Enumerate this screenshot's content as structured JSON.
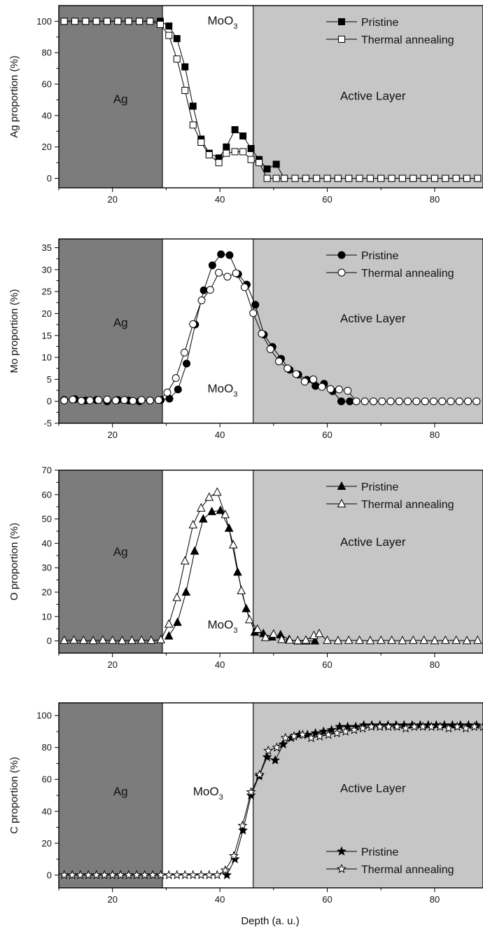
{
  "figure": {
    "xlabel": "Depth (a. u.)"
  },
  "chart_data": [
    {
      "id": "ag",
      "type": "line",
      "marker": "square",
      "ylabel": "Ag proportion (%)",
      "xlim": [
        10,
        89
      ],
      "ylim": [
        -6,
        110
      ],
      "xticks": [
        20,
        40,
        60,
        80
      ],
      "yticks": [
        0,
        20,
        40,
        60,
        80,
        100
      ],
      "regions": [
        {
          "label": "Ag",
          "x0": 10,
          "x1": 29.3,
          "fill": "#7c7c7c",
          "label_x": 21.5,
          "label_y": 48
        },
        {
          "label": "MoO",
          "sub": "3",
          "x0": 29.3,
          "x1": 46.2,
          "fill": "#ffffff",
          "label_x": 40.5,
          "label_y": 98
        },
        {
          "label": "Active Layer",
          "x0": 46.2,
          "x1": 89,
          "fill": "#c6c6c6",
          "label_x": 68.5,
          "label_y": 50
        }
      ],
      "legend_position": "top-right",
      "series": [
        {
          "name": "Pristine",
          "filled": true,
          "x": [
            11,
            13,
            15,
            17,
            19,
            21,
            23,
            25,
            27,
            28.9,
            30.5,
            32,
            33.5,
            35,
            36.5,
            38,
            39.8,
            41.2,
            42.8,
            44.3,
            45.8,
            47.3,
            48.8,
            50.5,
            52,
            54,
            56,
            58,
            60,
            62,
            64,
            66,
            68,
            70,
            72,
            74,
            76,
            78,
            80,
            82,
            84,
            86,
            88
          ],
          "y": [
            100,
            100,
            100,
            100,
            100,
            100,
            100,
            100,
            100,
            100,
            97,
            89,
            71,
            46,
            25,
            16,
            13,
            20,
            31,
            27,
            19,
            12,
            6,
            9,
            0,
            0,
            0,
            0,
            0,
            0,
            0,
            0,
            0,
            0,
            0,
            0,
            0,
            0,
            0,
            0,
            0,
            0,
            0
          ]
        },
        {
          "name": "Thermal annealing",
          "filled": false,
          "x": [
            11,
            13,
            15,
            17,
            19,
            21,
            23,
            25,
            27,
            28.9,
            30.5,
            32,
            33.5,
            35,
            36.5,
            38,
            39.8,
            41.2,
            42.8,
            44.3,
            45.8,
            47.3,
            48.8,
            50.5,
            52,
            54,
            56,
            58,
            60,
            62,
            64,
            66,
            68,
            70,
            72,
            74,
            76,
            78,
            80,
            82,
            84,
            86,
            88
          ],
          "y": [
            100,
            100,
            100,
            100,
            100,
            100,
            100,
            100,
            100,
            98,
            91,
            76,
            56,
            34,
            23,
            15,
            10,
            16,
            17,
            17,
            12,
            10,
            0,
            0,
            0,
            0,
            0,
            0,
            0,
            0,
            0,
            0,
            0,
            0,
            0,
            0,
            0,
            0,
            0,
            0,
            0,
            0,
            0
          ]
        }
      ]
    },
    {
      "id": "mo",
      "type": "line",
      "marker": "circle",
      "ylabel": "Mo proportion (%)",
      "xlim": [
        10,
        89
      ],
      "ylim": [
        -5,
        37
      ],
      "xticks": [
        20,
        40,
        60,
        80
      ],
      "yticks": [
        -5,
        0,
        5,
        10,
        15,
        20,
        25,
        30,
        35
      ],
      "regions": [
        {
          "label": "Ag",
          "x0": 10,
          "x1": 29.3,
          "fill": "#7c7c7c",
          "label_x": 21.5,
          "label_y": 17
        },
        {
          "label": "MoO",
          "sub": "3",
          "x0": 29.3,
          "x1": 46.2,
          "fill": "#ffffff",
          "label_x": 40.5,
          "label_y": 2
        },
        {
          "label": "Active Layer",
          "x0": 46.2,
          "x1": 89,
          "fill": "#c6c6c6",
          "label_x": 68.5,
          "label_y": 18
        }
      ],
      "legend_position": "top-right",
      "series": [
        {
          "name": "Pristine",
          "filled": true,
          "x": [
            11,
            13,
            15,
            17,
            19,
            21,
            23,
            25,
            27,
            29,
            30.6,
            32.2,
            33.8,
            35.4,
            37,
            38.6,
            40.2,
            41.8,
            43.4,
            45,
            46.6,
            48.2,
            49.8,
            51.4,
            53,
            54.6,
            56.2,
            57.8,
            59.4,
            61,
            62.6,
            64.2
          ],
          "y": [
            0.3,
            0.5,
            0.2,
            0.3,
            0,
            0.3,
            0.2,
            0,
            0.2,
            0.3,
            0.6,
            2.7,
            8.6,
            17.5,
            25.3,
            31,
            33.5,
            33.3,
            29,
            26.6,
            22,
            15.2,
            12.4,
            9.7,
            7.2,
            6.1,
            4.9,
            3.5,
            4,
            2.3,
            0,
            0
          ]
        },
        {
          "name": "Thermal annealing",
          "filled": false,
          "x": [
            11,
            12.6,
            14.2,
            15.8,
            17.4,
            19,
            20.6,
            22.2,
            23.8,
            25.4,
            27,
            28.6,
            30.2,
            31.8,
            33.4,
            35,
            36.6,
            38.2,
            39.8,
            41.4,
            43,
            44.6,
            46.2,
            47.8,
            49.4,
            51,
            52.6,
            54.2,
            55.8,
            57.4,
            59,
            60.6,
            62.2,
            63.8,
            65.4,
            67,
            68.6,
            70.2,
            71.8,
            73.4,
            75,
            76.6,
            78.2,
            79.8,
            81.4,
            83,
            84.6,
            86.2,
            87.8
          ],
          "y": [
            0.2,
            0.4,
            0.1,
            0.2,
            0.3,
            0.4,
            0.2,
            0.3,
            0.1,
            0.3,
            0.2,
            0.3,
            2,
            5.3,
            11.1,
            17.6,
            23,
            25.4,
            29.3,
            28.4,
            29.2,
            26,
            20.1,
            15.4,
            11.9,
            9.1,
            7.5,
            6.2,
            4.5,
            5,
            3.3,
            2.8,
            2.7,
            2.4,
            0,
            0,
            0,
            0,
            0,
            0,
            0,
            0,
            0,
            0,
            0,
            0,
            0,
            0,
            0
          ]
        }
      ]
    },
    {
      "id": "o",
      "type": "line",
      "marker": "triangle",
      "ylabel": "O proportion (%)",
      "xlim": [
        10,
        89
      ],
      "ylim": [
        -5,
        70
      ],
      "xticks": [
        20,
        40,
        60,
        80
      ],
      "yticks": [
        0,
        10,
        20,
        30,
        40,
        50,
        60,
        70
      ],
      "regions": [
        {
          "label": "Ag",
          "x0": 10,
          "x1": 29.3,
          "fill": "#7c7c7c",
          "label_x": 21.5,
          "label_y": 35
        },
        {
          "label": "MoO",
          "sub": "3",
          "x0": 29.3,
          "x1": 46.2,
          "fill": "#ffffff",
          "label_x": 40.5,
          "label_y": 5
        },
        {
          "label": "Active Layer",
          "x0": 46.2,
          "x1": 89,
          "fill": "#c6c6c6",
          "label_x": 68.5,
          "label_y": 39
        }
      ],
      "legend_position": "top-right",
      "series": [
        {
          "name": "Pristine",
          "filled": true,
          "x": [
            30.5,
            32.1,
            33.7,
            35.3,
            36.9,
            38.5,
            40.1,
            41.7,
            43.3,
            44.9,
            46.5,
            48.1,
            49.7,
            51.3,
            52.9,
            54.5,
            56.1,
            57.7
          ],
          "y": [
            2,
            7.6,
            20,
            36.8,
            50,
            53,
            53.5,
            46.2,
            28.2,
            13.2,
            3.6,
            3,
            1.6,
            2.5,
            0.5,
            0,
            0,
            0
          ]
        },
        {
          "name": "Thermal annealing",
          "filled": false,
          "x": [
            11,
            12.8,
            14.6,
            16.4,
            18.2,
            20,
            21.8,
            23.6,
            25.4,
            27.2,
            29,
            30.5,
            32,
            33.5,
            35,
            36.5,
            38,
            39.5,
            41,
            42.5,
            44,
            45.5,
            47,
            48.5,
            50,
            51.5,
            53,
            54.5,
            56,
            57.5,
            58.5,
            60,
            62,
            64,
            66,
            68,
            70,
            72,
            74,
            76,
            78,
            80,
            82,
            84,
            86,
            88
          ],
          "y": [
            0.2,
            0.3,
            0.2,
            0.1,
            0.3,
            0.2,
            0.1,
            0.2,
            0.3,
            0.2,
            0.5,
            6.9,
            17.8,
            32.8,
            47.6,
            54.5,
            58.9,
            61,
            51.8,
            39.4,
            20.6,
            8.7,
            4.8,
            1.4,
            2.8,
            0.6,
            0.3,
            0.1,
            0.3,
            2.2,
            3,
            0.2,
            0.1,
            0.2,
            0.2,
            0.1,
            0.2,
            0.2,
            0.1,
            0.2,
            0.2,
            0.1,
            0.2,
            0.2,
            0.1,
            0.2
          ]
        }
      ]
    },
    {
      "id": "c",
      "type": "line",
      "marker": "star",
      "ylabel": "C proportion (%)",
      "xlim": [
        10,
        89
      ],
      "ylim": [
        -8,
        108
      ],
      "xticks": [
        20,
        40,
        60,
        80
      ],
      "yticks": [
        0,
        20,
        40,
        60,
        80,
        100
      ],
      "regions": [
        {
          "label": "Ag",
          "x0": 10,
          "x1": 29.3,
          "fill": "#7c7c7c",
          "label_x": 21.5,
          "label_y": 50
        },
        {
          "label": "MoO",
          "sub": "3",
          "x0": 29.3,
          "x1": 46.2,
          "fill": "#ffffff",
          "label_x": 37.8,
          "label_y": 50
        },
        {
          "label": "Active Layer",
          "x0": 46.2,
          "x1": 89,
          "fill": "#c6c6c6",
          "label_x": 68.5,
          "label_y": 52
        }
      ],
      "legend_position": "bottom-right",
      "series": [
        {
          "name": "Pristine",
          "filled": true,
          "x": [
            41.3,
            42.8,
            44.3,
            45.8,
            47.3,
            48.8,
            50.3,
            51.8,
            53.3,
            54.8,
            56.3,
            57.8,
            59.3,
            60.8,
            62.3,
            63.8,
            65.3,
            66.8,
            68.3,
            69.8,
            71.3,
            72.8,
            74.3,
            75.8,
            77.3,
            78.8,
            80.3,
            81.8,
            83.3,
            84.8,
            86.3,
            87.8
          ],
          "y": [
            0,
            10,
            28,
            50,
            62,
            74,
            72,
            82,
            86,
            88,
            88,
            89,
            90,
            91,
            93,
            93,
            93,
            94,
            94,
            94,
            94,
            94,
            94,
            94,
            94,
            94,
            94,
            94,
            94,
            94,
            94,
            94
          ]
        },
        {
          "name": "Thermal annealing",
          "filled": false,
          "x": [
            11,
            12.5,
            14,
            15.5,
            17,
            18.5,
            20,
            21.5,
            23,
            24.5,
            26,
            27.5,
            29,
            30.5,
            32,
            33.5,
            35,
            36.5,
            38,
            39.5,
            41,
            42.6,
            44.2,
            45.8,
            47.4,
            49,
            50.6,
            52.2,
            53.8,
            55.4,
            57,
            58.6,
            60.2,
            61.8,
            63.4,
            65,
            66.6,
            68.2,
            69.8,
            71.4,
            73,
            74.6,
            76.2,
            77.8,
            79.4,
            81,
            82.6,
            84.2,
            85.8,
            87.4,
            89
          ],
          "y": [
            0,
            0,
            0,
            0,
            0,
            0,
            0,
            0,
            0,
            0,
            0,
            0,
            0,
            0,
            0,
            0,
            0,
            0,
            0,
            0,
            3,
            12,
            31,
            52,
            63,
            78,
            80,
            86,
            87,
            88,
            86,
            87,
            88,
            89,
            90,
            91,
            92,
            93,
            93,
            93,
            93,
            92,
            93,
            93,
            93,
            93,
            92,
            93,
            92,
            93,
            93
          ]
        }
      ]
    }
  ]
}
